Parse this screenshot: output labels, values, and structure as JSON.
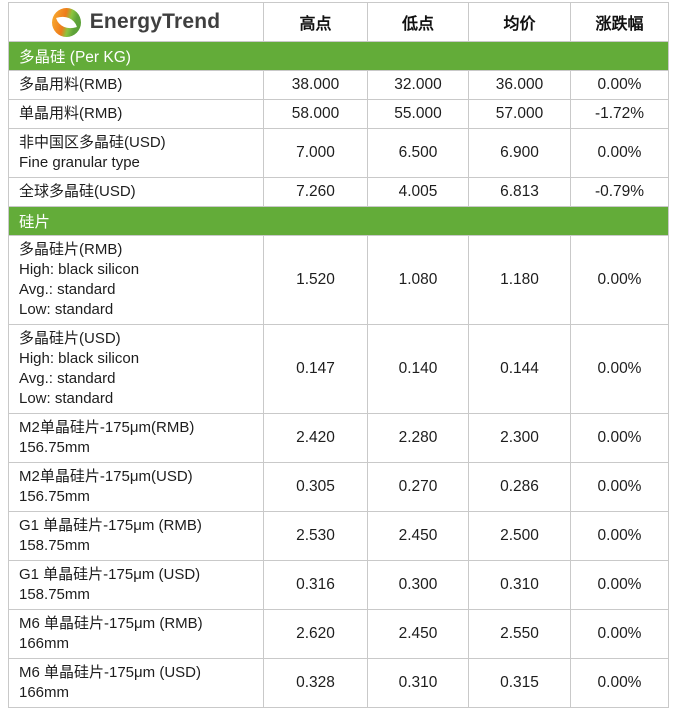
{
  "brand": {
    "name": "EnergyTrend"
  },
  "colors": {
    "section_green": "#63ac39",
    "border_gray": "#c9c9c9",
    "logo_orange": "#ee7c1b",
    "logo_green": "#8bc53f",
    "text_dark": "#1d1d1d"
  },
  "table": {
    "columns": [
      "高点",
      "低点",
      "均价",
      "涨跌幅"
    ],
    "sections": [
      {
        "header": "多晶硅 (Per KG)",
        "rows": [
          {
            "label_lines": [
              "多晶用料(RMB)"
            ],
            "high": "38.000",
            "low": "32.000",
            "avg": "36.000",
            "change": "0.00%"
          },
          {
            "label_lines": [
              "单晶用料(RMB)"
            ],
            "high": "58.000",
            "low": "55.000",
            "avg": "57.000",
            "change": "-1.72%"
          },
          {
            "label_lines": [
              "非中国区多晶硅(USD)",
              "Fine granular type"
            ],
            "high": "7.000",
            "low": "6.500",
            "avg": "6.900",
            "change": "0.00%"
          },
          {
            "label_lines": [
              "全球多晶硅(USD)"
            ],
            "high": "7.260",
            "low": "4.005",
            "avg": "6.813",
            "change": "-0.79%"
          }
        ]
      },
      {
        "header": "硅片",
        "rows": [
          {
            "label_lines": [
              "多晶硅片(RMB)",
              "High: black silicon",
              "Avg.: standard",
              "Low: standard"
            ],
            "high": "1.520",
            "low": "1.080",
            "avg": "1.180",
            "change": "0.00%"
          },
          {
            "label_lines": [
              "多晶硅片(USD)",
              "High: black silicon",
              "Avg.: standard",
              "Low: standard"
            ],
            "high": "0.147",
            "low": "0.140",
            "avg": "0.144",
            "change": "0.00%"
          },
          {
            "label_lines": [
              "M2单晶硅片-175μm(RMB)",
              "156.75mm"
            ],
            "high": "2.420",
            "low": "2.280",
            "avg": "2.300",
            "change": "0.00%"
          },
          {
            "label_lines": [
              "M2单晶硅片-175μm(USD)",
              "156.75mm"
            ],
            "high": "0.305",
            "low": "0.270",
            "avg": "0.286",
            "change": "0.00%"
          },
          {
            "label_lines": [
              "G1 单晶硅片-175μm (RMB)",
              "158.75mm"
            ],
            "high": "2.530",
            "low": "2.450",
            "avg": "2.500",
            "change": "0.00%"
          },
          {
            "label_lines": [
              "G1 单晶硅片-175μm (USD)",
              "158.75mm"
            ],
            "high": "0.316",
            "low": "0.300",
            "avg": "0.310",
            "change": "0.00%"
          },
          {
            "label_lines": [
              "M6 单晶硅片-175μm (RMB)",
              "166mm"
            ],
            "high": "2.620",
            "low": "2.450",
            "avg": "2.550",
            "change": "0.00%"
          },
          {
            "label_lines": [
              "M6 单晶硅片-175μm (USD)",
              "166mm"
            ],
            "high": "0.328",
            "low": "0.310",
            "avg": "0.315",
            "change": "0.00%"
          }
        ]
      }
    ]
  }
}
